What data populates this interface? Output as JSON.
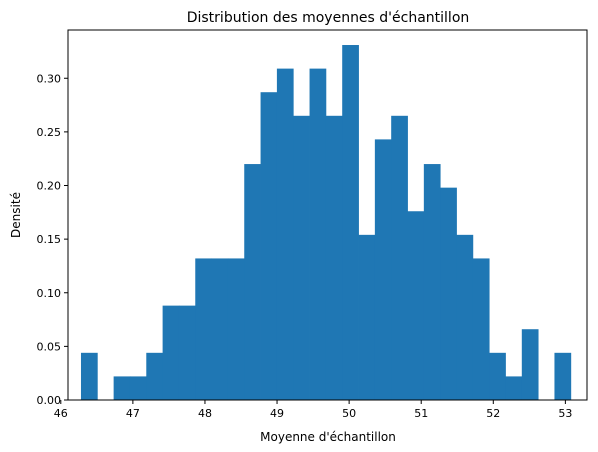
{
  "chart_data": {
    "type": "bar",
    "title": "Distribution des moyennes d'échantillon",
    "xlabel": "Moyenne d'échantillon",
    "ylabel": "Densité",
    "xlim": [
      46.1,
      53.3
    ],
    "ylim": [
      0,
      0.345
    ],
    "xticks": [
      46,
      47,
      48,
      49,
      50,
      51,
      52,
      53
    ],
    "yticks": [
      0.0,
      0.05,
      0.1,
      0.15,
      0.2,
      0.25,
      0.3
    ],
    "ytick_labels": [
      "0.00",
      "0.05",
      "0.10",
      "0.15",
      "0.20",
      "0.25",
      "0.30"
    ],
    "bin_start": 46.28,
    "bin_width": 0.2265,
    "densities": [
      0.044,
      0,
      0.022,
      0.022,
      0.044,
      0.088,
      0.088,
      0.132,
      0.132,
      0.132,
      0.22,
      0.287,
      0.309,
      0.265,
      0.309,
      0.265,
      0.331,
      0.154,
      0.243,
      0.265,
      0.176,
      0.22,
      0.198,
      0.154,
      0.132,
      0.044,
      0.022,
      0.066,
      0,
      0.044
    ],
    "bar_color": "#1f77b4",
    "grid": false
  }
}
